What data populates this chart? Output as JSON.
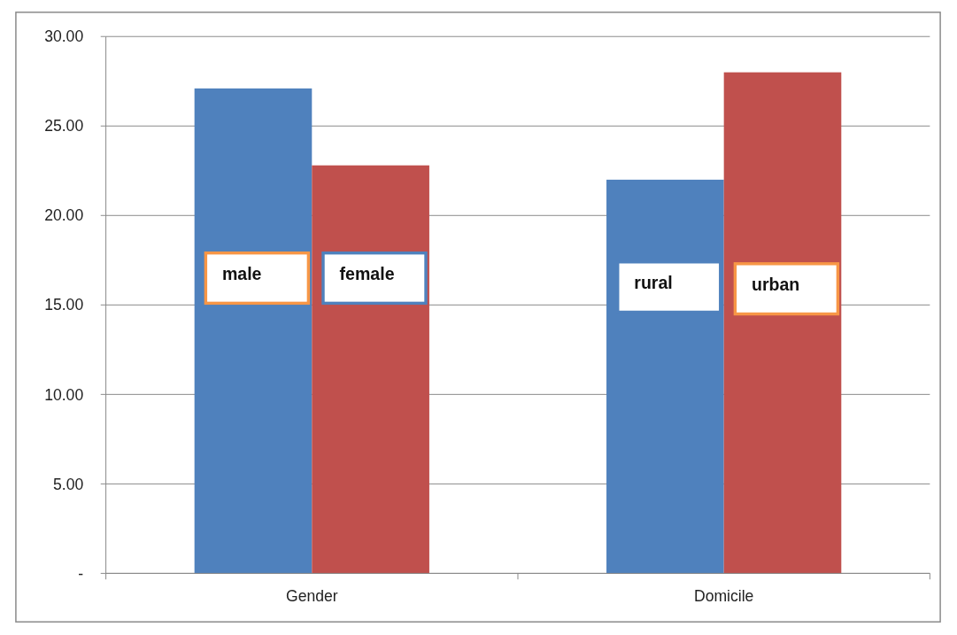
{
  "chart_data": {
    "type": "bar",
    "categories": [
      "Gender",
      "Domicile"
    ],
    "series": [
      {
        "color": "#4f81bd",
        "values": [
          27.1,
          22.0
        ]
      },
      {
        "color": "#c0504d",
        "values": [
          22.8,
          28.0
        ]
      }
    ],
    "ylim": [
      0,
      30
    ],
    "yticks": [
      {
        "value": 0,
        "label": "-"
      },
      {
        "value": 5,
        "label": "5.00"
      },
      {
        "value": 10,
        "label": "10.00"
      },
      {
        "value": 15,
        "label": "15.00"
      },
      {
        "value": 20,
        "label": "20.00"
      },
      {
        "value": 25,
        "label": "25.00"
      },
      {
        "value": 30,
        "label": "30.00"
      }
    ],
    "grid": "y",
    "annotations": [
      {
        "text": "male",
        "x": "Gender",
        "y": 16.5
      },
      {
        "text": "female",
        "x": "Gender",
        "y": 16.5
      },
      {
        "text": "rural",
        "x": "Domicile",
        "y": 16.0
      },
      {
        "text": "urban",
        "x": "Domicile",
        "y": 15.9
      }
    ]
  }
}
